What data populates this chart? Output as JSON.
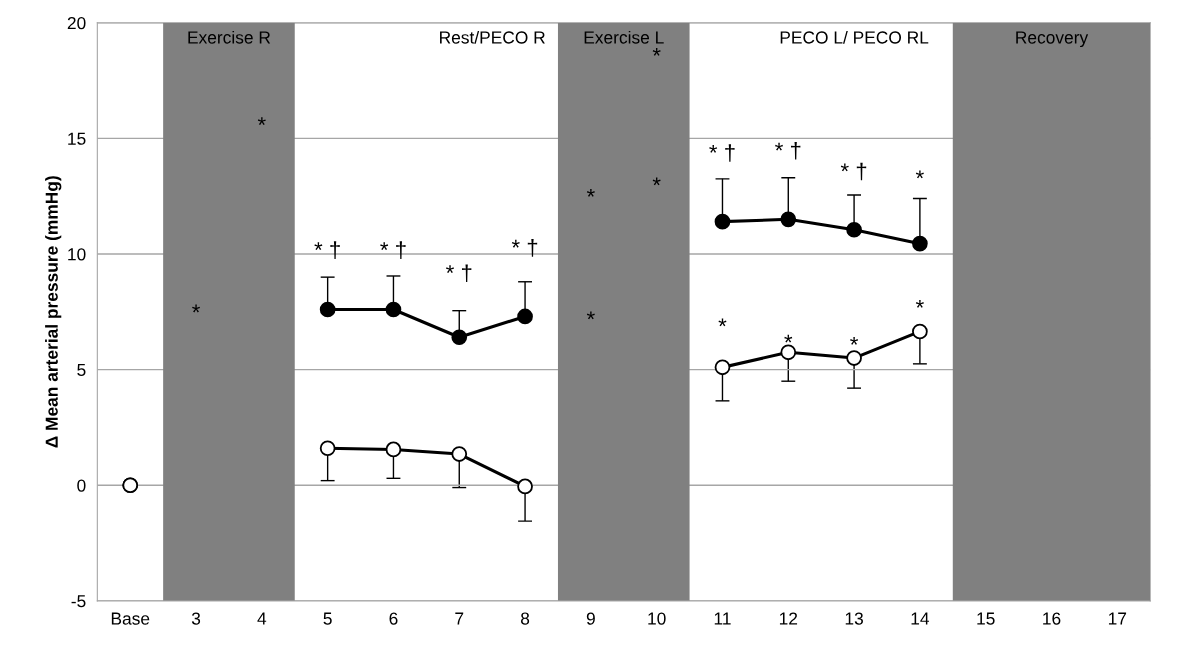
{
  "chart_data": {
    "type": "line",
    "ylabel": "Δ Mean arterial pressure (mmHg)",
    "categories": [
      "Base",
      "3",
      "4",
      "5",
      "6",
      "7",
      "8",
      "9",
      "10",
      "11",
      "12",
      "13",
      "14",
      "15",
      "16",
      "17"
    ],
    "series": [
      {
        "color": "#000000",
        "marker": "circle",
        "values": [
          0,
          null,
          null,
          7.6,
          7.6,
          6.4,
          7.3,
          null,
          null,
          11.4,
          11.5,
          11.05,
          10.45,
          null,
          null,
          null
        ],
        "errors": [
          null,
          null,
          null,
          [
            7.6,
            9.0
          ],
          [
            7.6,
            9.05
          ],
          [
            6.4,
            7.55
          ],
          [
            7.3,
            8.8
          ],
          null,
          null,
          [
            11.4,
            13.25
          ],
          [
            11.5,
            13.3
          ],
          [
            11.05,
            12.55
          ],
          [
            10.45,
            12.4
          ],
          null,
          null,
          null
        ]
      },
      {
        "color": "#ffffff",
        "marker": "circle",
        "values": [
          0,
          null,
          null,
          1.6,
          1.55,
          1.35,
          -0.05,
          null,
          null,
          5.1,
          5.75,
          5.5,
          6.65,
          null,
          null,
          null
        ],
        "errors": [
          null,
          null,
          null,
          [
            0.2,
            1.6
          ],
          [
            0.3,
            1.55
          ],
          [
            -0.1,
            1.35
          ],
          [
            -1.55,
            -0.05
          ],
          null,
          null,
          [
            3.65,
            5.1
          ],
          [
            4.5,
            5.75
          ],
          [
            4.2,
            5.5
          ],
          [
            5.25,
            6.65
          ],
          null,
          null,
          null
        ]
      }
    ],
    "ylim": [
      -5,
      20
    ],
    "yticks": [
      -5,
      0,
      5,
      10,
      15,
      20
    ],
    "grid": "y",
    "legend": false,
    "line_style": "solid",
    "bands": [
      {
        "axis": "x",
        "from": "3",
        "to": "4",
        "label": "Exercise R",
        "color": "#808080"
      },
      {
        "axis": "x",
        "from": "9",
        "to": "10",
        "label": "Exercise L",
        "color": "#808080"
      },
      {
        "axis": "x",
        "from": "15",
        "to": "17",
        "label": "Recovery",
        "color": "#808080"
      }
    ],
    "annotations": [
      "Rest/PECO R",
      "PECO L/ PECO RL",
      "*",
      "*",
      "* †",
      "* †",
      "* †",
      "* †",
      "*",
      "*",
      "*",
      "*",
      "* †",
      "* †",
      "* †",
      "*",
      "*",
      "*",
      "*",
      "*"
    ]
  }
}
